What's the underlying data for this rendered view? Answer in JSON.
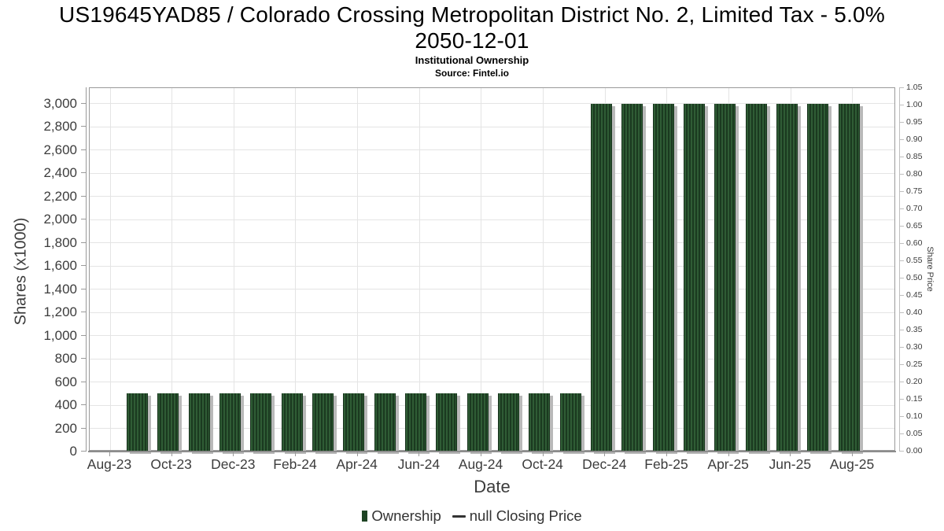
{
  "header": {
    "title_line1": "US19645YAD85 / Colorado Crossing Metropolitan District No. 2, Limited Tax - 5.0%",
    "title_line2": "2050-12-01",
    "subtitle": "Institutional Ownership",
    "source": "Source: Fintel.io"
  },
  "chart_data": {
    "type": "bar",
    "title": "US19645YAD85 / Colorado Crossing Metropolitan District No. 2, Limited Tax - 5.0% 2050-12-01",
    "subtitle": "Institutional Ownership",
    "source": "Source: Fintel.io",
    "xlabel": "Date",
    "ylabel": "Shares (x1000)",
    "y2label": "Share Price",
    "grid": true,
    "legend_position": "bottom",
    "x_tick_labels": [
      "Aug-23",
      "Oct-23",
      "Dec-23",
      "Feb-24",
      "Apr-24",
      "Jun-24",
      "Aug-24",
      "Oct-24",
      "Dec-24",
      "Feb-25",
      "Apr-25",
      "Jun-25",
      "Aug-25"
    ],
    "y_ticks": [
      0,
      200,
      400,
      600,
      800,
      1000,
      1200,
      1400,
      1600,
      1800,
      2000,
      2200,
      2400,
      2600,
      2800,
      3000
    ],
    "y2_ticks": [
      0.0,
      0.05,
      0.1,
      0.15,
      0.2,
      0.25,
      0.3,
      0.35,
      0.4,
      0.45,
      0.5,
      0.55,
      0.6,
      0.65,
      0.7,
      0.75,
      0.8,
      0.85,
      0.9,
      0.95,
      1.0,
      1.05
    ],
    "ylim": [
      0,
      3135
    ],
    "y2lim": [
      0,
      1.05
    ],
    "categories": [
      "Sep-23",
      "Oct-23",
      "Nov-23",
      "Dec-23",
      "Jan-24",
      "Feb-24",
      "Mar-24",
      "Apr-24",
      "May-24",
      "Jun-24",
      "Jul-24",
      "Aug-24",
      "Sep-24",
      "Oct-24",
      "Nov-24",
      "Dec-24",
      "Jan-25",
      "Feb-25",
      "Mar-25",
      "Apr-25",
      "May-25",
      "Jun-25",
      "Jul-25",
      "Aug-25"
    ],
    "values": [
      500,
      500,
      500,
      500,
      500,
      500,
      500,
      500,
      500,
      500,
      500,
      500,
      500,
      500,
      500,
      3000,
      3000,
      3000,
      3000,
      3000,
      3000,
      3000,
      3000,
      3000
    ],
    "series": [
      {
        "name": "Ownership",
        "type": "bar",
        "marker": "bar-swatch",
        "color": "#1e4424"
      },
      {
        "name": "null Closing Price",
        "type": "line",
        "marker": "dash",
        "color": "#333333"
      }
    ],
    "colors": {
      "bar_fill_dark": "#1b3a20",
      "bar_fill_light": "#2f5c35",
      "bar_shadow": "#b9b9b9",
      "gridline": "#e4e4e4",
      "axis": "#9a9a9a",
      "tick_label": "#3c3c3c"
    }
  }
}
